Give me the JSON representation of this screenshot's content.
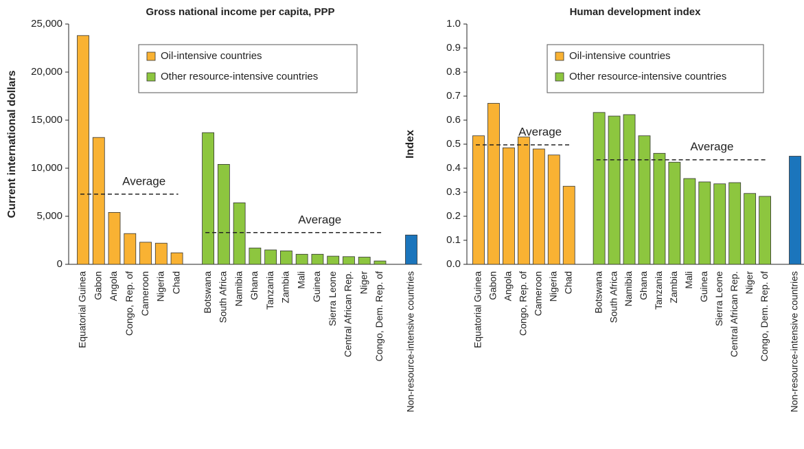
{
  "chart_data": [
    {
      "type": "bar",
      "title": "Gross national income per capita, PPP",
      "y_label": "Current international dollars",
      "categories": [
        "Equatorial Guinea",
        "Gabon",
        "Angola",
        "Congo, Rep. of",
        "Cameroon",
        "Nigeria",
        "Chad",
        null,
        "Botswana",
        "South Africa",
        "Namibia",
        "Ghana",
        "Tanzania",
        "Zambia",
        "Mali",
        "Guinea",
        "Sierra Leone",
        "Central African Rep.",
        "Niger",
        "Congo, Dem. Rep. of",
        null,
        "Non-resource-intensive countries"
      ],
      "series": [
        {
          "name": "Oil-intensive countries",
          "color": "#f9b233",
          "average": 7300,
          "average_label": "Average",
          "values": [
            23800,
            13200,
            5400,
            3200,
            2300,
            2200,
            1200,
            null,
            null,
            null,
            null,
            null,
            null,
            null,
            null,
            null,
            null,
            null,
            null,
            null,
            null,
            null
          ]
        },
        {
          "name": "Other resource-intensive countries",
          "color": "#8dc63f",
          "average": 3300,
          "average_label": "Average",
          "values": [
            null,
            null,
            null,
            null,
            null,
            null,
            null,
            null,
            13700,
            10400,
            6400,
            1700,
            1500,
            1400,
            1050,
            1050,
            850,
            800,
            750,
            350,
            null,
            null
          ]
        },
        {
          "color": "#1b75bc",
          "values": [
            null,
            null,
            null,
            null,
            null,
            null,
            null,
            null,
            null,
            null,
            null,
            null,
            null,
            null,
            null,
            null,
            null,
            null,
            null,
            null,
            null,
            3050
          ]
        }
      ],
      "ylim": [
        0,
        25000
      ],
      "yticks": [
        0,
        {
          "value": 5000,
          "label": "5,000"
        },
        {
          "value": 10000,
          "label": "10,000"
        },
        {
          "value": 15000,
          "label": "15,000"
        },
        {
          "value": 20000,
          "label": "20,000"
        },
        {
          "value": 25000,
          "label": "25,000"
        }
      ]
    },
    {
      "type": "bar",
      "title": "Human development index",
      "y_label": "Index",
      "categories": [
        "Equatorial Guinea",
        "Gabon",
        "Angola",
        "Congo, Rep. of",
        "Cameroon",
        "Nigeria",
        "Chad",
        null,
        "Botswana",
        "South Africa",
        "Namibia",
        "Ghana",
        "Tanzania",
        "Zambia",
        "Mali",
        "Guinea",
        "Sierra Leone",
        "Central African Rep.",
        "Niger",
        "Congo, Dem. Rep. of",
        null,
        "Non-resource-intensive countries"
      ],
      "series": [
        {
          "name": "Oil-intensive countries",
          "color": "#f9b233",
          "average": 0.497,
          "average_label": "Average",
          "values": [
            0.535,
            0.67,
            0.485,
            0.53,
            0.48,
            0.455,
            0.325,
            null,
            null,
            null,
            null,
            null,
            null,
            null,
            null,
            null,
            null,
            null,
            null,
            null,
            null,
            null
          ]
        },
        {
          "name": "Other resource-intensive countries",
          "color": "#8dc63f",
          "average": 0.435,
          "average_label": "Average",
          "values": [
            null,
            null,
            null,
            null,
            null,
            null,
            null,
            null,
            0.632,
            0.617,
            0.623,
            0.535,
            0.462,
            0.425,
            0.357,
            0.343,
            0.335,
            0.34,
            0.295,
            0.283,
            null,
            null
          ]
        },
        {
          "color": "#1b75bc",
          "values": [
            null,
            null,
            null,
            null,
            null,
            null,
            null,
            null,
            null,
            null,
            null,
            null,
            null,
            null,
            null,
            null,
            null,
            null,
            null,
            null,
            null,
            0.45
          ]
        }
      ],
      "ylim": [
        0,
        1
      ],
      "yticks": [
        {
          "value": 0,
          "label": "0.0"
        },
        0.1,
        0.2,
        0.3,
        0.4,
        0.5,
        0.6,
        0.7,
        0.8,
        0.9,
        {
          "value": 1,
          "label": "1.0"
        }
      ]
    }
  ]
}
